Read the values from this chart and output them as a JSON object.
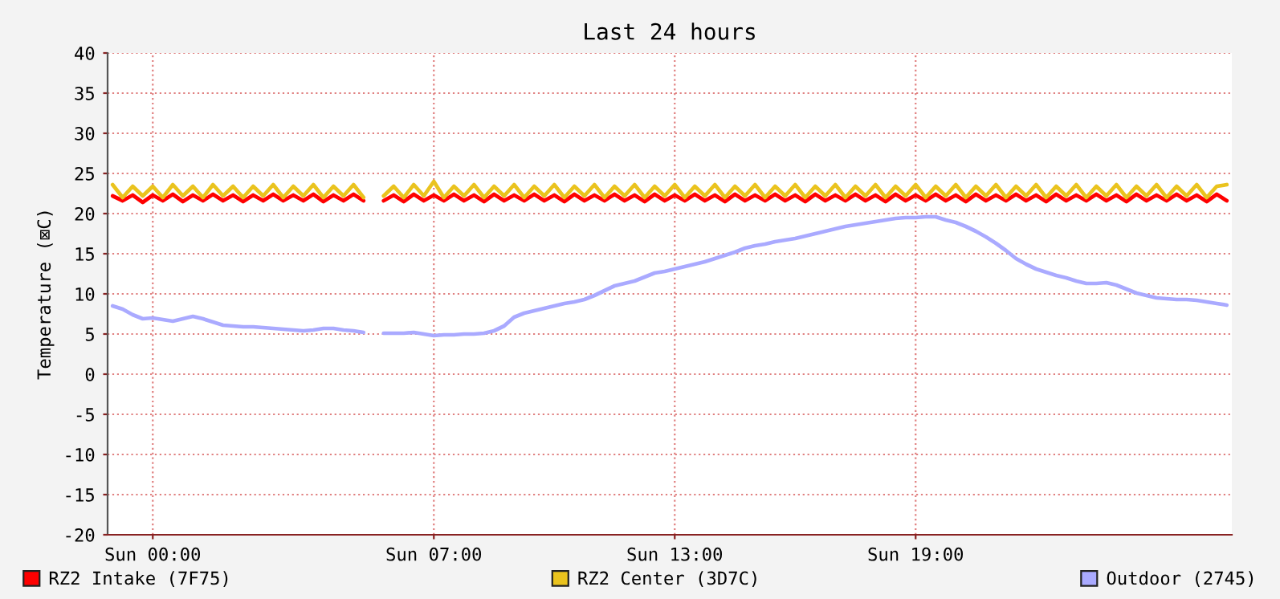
{
  "chart_data": {
    "type": "line",
    "title": "Last 24 hours",
    "ylabel": "Temperature (⊠C)",
    "categories": [
      null,
      null,
      null,
      null,
      "Sun 00:00",
      null,
      null,
      null,
      null,
      null,
      null,
      null,
      null,
      null,
      null,
      null,
      null,
      null,
      null,
      null,
      null,
      null,
      null,
      null,
      null,
      null,
      null,
      null,
      null,
      null,
      null,
      null,
      "Sun 07:00",
      null,
      null,
      null,
      null,
      null,
      null,
      null,
      null,
      null,
      null,
      null,
      null,
      null,
      null,
      null,
      null,
      null,
      null,
      null,
      null,
      null,
      null,
      null,
      "Sun 13:00",
      null,
      null,
      null,
      null,
      null,
      null,
      null,
      null,
      null,
      null,
      null,
      null,
      null,
      null,
      null,
      null,
      null,
      null,
      null,
      null,
      null,
      null,
      null,
      "Sun 19:00",
      null,
      null,
      null,
      null,
      null,
      null,
      null,
      null,
      null,
      null,
      null,
      null,
      null,
      null,
      null,
      null,
      null,
      null,
      null,
      null,
      null,
      null,
      null,
      null,
      null,
      null,
      null,
      null,
      null,
      null,
      null
    ],
    "series": [
      {
        "name": "RZ2 Intake (7F75)",
        "color": "#ff0000",
        "values": [
          22.2,
          21.6,
          22.3,
          21.4,
          22.3,
          21.6,
          22.4,
          21.5,
          22.3,
          21.6,
          22.4,
          21.6,
          22.3,
          21.5,
          22.3,
          21.6,
          22.4,
          21.6,
          22.3,
          21.6,
          22.4,
          21.5,
          22.3,
          21.6,
          22.4,
          21.6,
          null,
          21.6,
          22.3,
          21.5,
          22.4,
          21.6,
          22.3,
          21.6,
          22.4,
          21.6,
          22.3,
          21.5,
          22.4,
          21.6,
          22.3,
          21.6,
          22.4,
          21.6,
          22.3,
          21.5,
          22.4,
          21.6,
          22.3,
          21.6,
          22.4,
          21.6,
          22.3,
          21.5,
          22.4,
          21.6,
          22.3,
          21.6,
          22.4,
          21.6,
          22.3,
          21.5,
          22.4,
          21.6,
          22.3,
          21.6,
          22.4,
          21.6,
          22.3,
          21.5,
          22.4,
          21.6,
          22.3,
          21.6,
          22.4,
          21.6,
          22.3,
          21.5,
          22.4,
          21.6,
          22.3,
          21.6,
          22.4,
          21.6,
          22.3,
          21.5,
          22.4,
          21.6,
          22.3,
          21.6,
          22.4,
          21.6,
          22.3,
          21.5,
          22.4,
          21.6,
          22.3,
          21.6,
          22.4,
          21.6,
          22.3,
          21.5,
          22.4,
          21.6,
          22.3,
          21.6,
          22.4,
          21.6,
          22.3,
          21.5,
          22.4,
          21.6
        ]
      },
      {
        "name": "RZ2 Center (3D7C)",
        "color": "#eac31e",
        "values": [
          23.6,
          22.0,
          23.4,
          22.2,
          23.4,
          22.0,
          23.6,
          22.2,
          23.4,
          22.0,
          23.6,
          22.2,
          23.4,
          22.0,
          23.4,
          22.2,
          23.6,
          22.0,
          23.4,
          22.2,
          23.6,
          22.0,
          23.4,
          22.2,
          23.6,
          22.0,
          null,
          22.2,
          23.4,
          22.0,
          23.6,
          22.2,
          24.0,
          22.0,
          23.4,
          22.2,
          23.6,
          22.0,
          23.4,
          22.2,
          23.6,
          22.0,
          23.4,
          22.2,
          23.6,
          22.0,
          23.4,
          22.2,
          23.6,
          22.0,
          23.4,
          22.2,
          23.6,
          22.0,
          23.4,
          22.2,
          23.6,
          22.0,
          23.4,
          22.2,
          23.6,
          22.0,
          23.4,
          22.2,
          23.6,
          22.0,
          23.4,
          22.2,
          23.6,
          22.0,
          23.4,
          22.2,
          23.6,
          22.0,
          23.4,
          22.2,
          23.6,
          22.0,
          23.4,
          22.2,
          23.6,
          22.0,
          23.4,
          22.2,
          23.6,
          22.0,
          23.4,
          22.2,
          23.6,
          22.0,
          23.4,
          22.2,
          23.6,
          22.0,
          23.4,
          22.2,
          23.6,
          22.0,
          23.4,
          22.2,
          23.6,
          22.0,
          23.4,
          22.2,
          23.6,
          22.0,
          23.4,
          22.2,
          23.6,
          22.0,
          23.4,
          23.6
        ]
      },
      {
        "name": "Outdoor (2745)",
        "color": "#aaaaff",
        "values": [
          8.5,
          8.1,
          7.4,
          6.9,
          7.0,
          6.8,
          6.6,
          6.9,
          7.2,
          6.9,
          6.5,
          6.1,
          6.0,
          5.9,
          5.9,
          5.8,
          5.7,
          5.6,
          5.5,
          5.4,
          5.5,
          5.7,
          5.7,
          5.5,
          5.4,
          5.2,
          null,
          5.1,
          5.1,
          5.1,
          5.2,
          5.0,
          4.8,
          4.9,
          4.9,
          5.0,
          5.0,
          5.1,
          5.4,
          6.0,
          7.1,
          7.6,
          7.9,
          8.2,
          8.5,
          8.8,
          9.0,
          9.3,
          9.8,
          10.4,
          11.0,
          11.3,
          11.6,
          12.1,
          12.6,
          12.8,
          13.1,
          13.4,
          13.7,
          14.0,
          14.4,
          14.8,
          15.2,
          15.7,
          16.0,
          16.2,
          16.5,
          16.7,
          16.9,
          17.2,
          17.5,
          17.8,
          18.1,
          18.4,
          18.6,
          18.8,
          19.0,
          19.2,
          19.4,
          19.5,
          19.5,
          19.6,
          19.6,
          19.2,
          18.9,
          18.4,
          17.8,
          17.1,
          16.3,
          15.4,
          14.4,
          13.7,
          13.1,
          12.7,
          12.3,
          12.0,
          11.6,
          11.3,
          11.3,
          11.4,
          11.1,
          10.6,
          10.1,
          9.8,
          9.5,
          9.4,
          9.3,
          9.3,
          9.2,
          9.0,
          8.8,
          8.6
        ]
      }
    ],
    "ylim": [
      -20,
      40
    ],
    "yticks": [
      -20,
      -15,
      -10,
      -5,
      0,
      5,
      10,
      15,
      20,
      25,
      30,
      35,
      40
    ],
    "grid": true,
    "legend": "bottom",
    "line_style": "solid",
    "marker": "none"
  }
}
